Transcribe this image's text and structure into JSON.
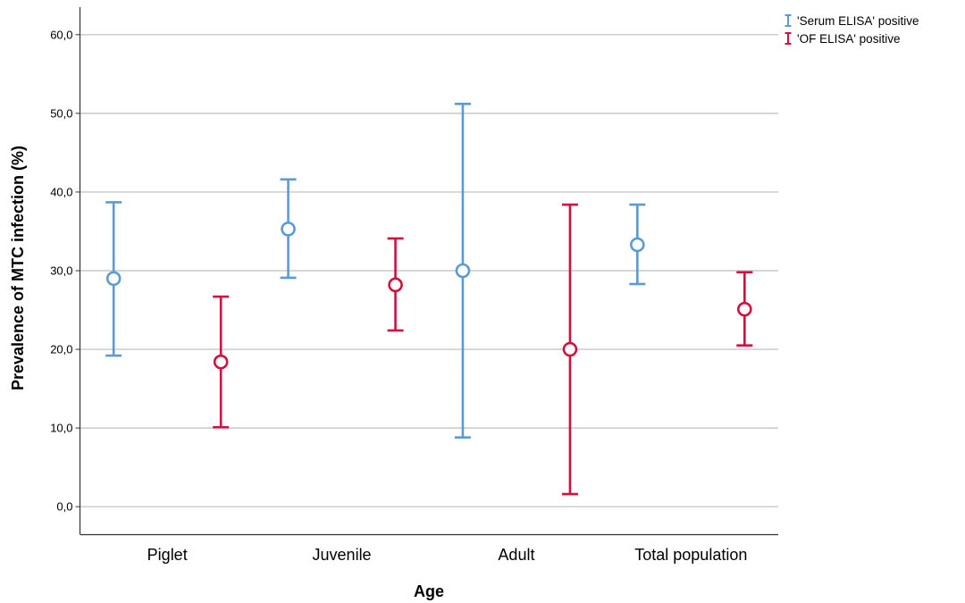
{
  "chart_data": {
    "type": "errorbar",
    "xlabel": "Age",
    "ylabel": "Prevalence of MTC infection (%)",
    "categories": [
      "Piglet",
      "Juvenile",
      "Adult",
      "Total population"
    ],
    "y_ticks": [
      "0,0",
      "10,0",
      "20,0",
      "30,0",
      "40,0",
      "50,0",
      "60,0"
    ],
    "ylim": [
      -3.5,
      63.5
    ],
    "grid": "horizontal",
    "legend_position": "top-right",
    "series": [
      {
        "name": "'Serum ELISA' positive",
        "color": "#5b9bd5",
        "points": [
          {
            "category": "Piglet",
            "value": 29.0,
            "lower": 19.2,
            "upper": 38.7
          },
          {
            "category": "Juvenile",
            "value": 35.3,
            "lower": 29.1,
            "upper": 41.6
          },
          {
            "category": "Adult",
            "value": 30.0,
            "lower": 8.8,
            "upper": 51.2
          },
          {
            "category": "Total population",
            "value": 33.3,
            "lower": 28.3,
            "upper": 38.4
          }
        ]
      },
      {
        "name": "'OF ELISA' positive",
        "color": "#d0103f",
        "points": [
          {
            "category": "Piglet",
            "value": 18.4,
            "lower": 10.1,
            "upper": 26.7
          },
          {
            "category": "Juvenile",
            "value": 28.2,
            "lower": 22.4,
            "upper": 34.1
          },
          {
            "category": "Adult",
            "value": 20.0,
            "lower": 1.6,
            "upper": 38.4
          },
          {
            "category": "Total population",
            "value": 25.1,
            "lower": 20.5,
            "upper": 29.8
          }
        ]
      }
    ]
  }
}
